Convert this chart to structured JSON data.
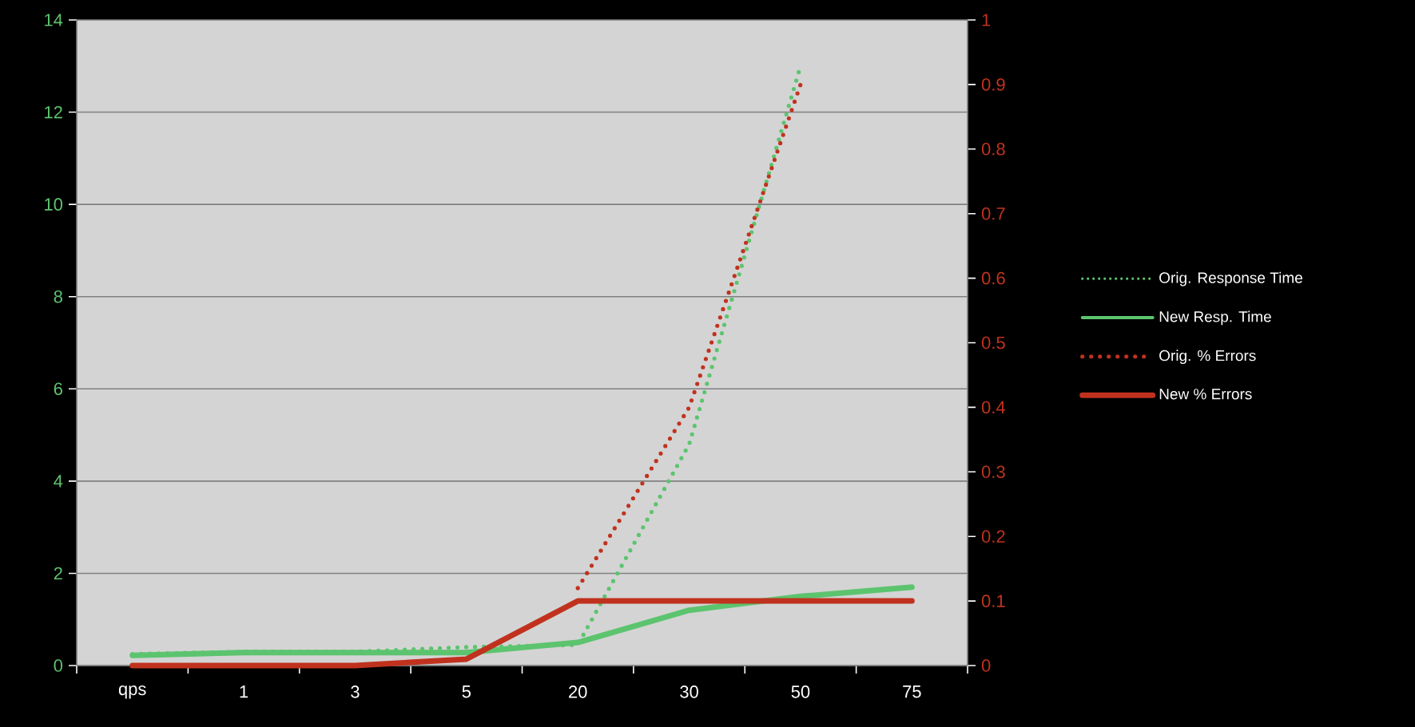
{
  "chart_data": {
    "type": "line",
    "categories": [
      "qps",
      "1",
      "3",
      "5",
      "20",
      "30",
      "50",
      "75"
    ],
    "series": [
      {
        "name": "Orig. Response Time",
        "color": "#5cc46e",
        "line_style": "dotted",
        "values": [
          0.25,
          0.3,
          0.3,
          0.4,
          0.45,
          4.8,
          13.0,
          null
        ]
      },
      {
        "name": "New Resp. Time",
        "color": "#5cc46e",
        "line_style": "solid",
        "values": [
          0.22,
          0.28,
          0.28,
          0.28,
          0.5,
          1.2,
          1.5,
          1.7
        ]
      },
      {
        "name": "Orig. % Errors",
        "color": "#c0321e",
        "line_style": "dotted",
        "axis": "y2",
        "values": [
          null,
          null,
          null,
          null,
          0.12,
          0.4,
          0.9,
          null
        ]
      },
      {
        "name": "New % Errors",
        "color": "#c0321e",
        "line_style": "solid",
        "axis": "y2",
        "values": [
          0,
          0,
          0,
          0.01,
          0.1,
          0.1,
          0.1,
          0.1
        ]
      }
    ],
    "ylim": [
      0,
      14
    ],
    "yticks": [
      0,
      2,
      4,
      6,
      8,
      10,
      12,
      14
    ],
    "y2lim": [
      0,
      1
    ],
    "y2ticks": [
      0,
      0.1,
      0.2,
      0.3,
      0.4,
      0.5,
      0.6,
      0.7,
      0.8,
      0.9,
      1
    ],
    "grid": "y",
    "legend": "right"
  }
}
